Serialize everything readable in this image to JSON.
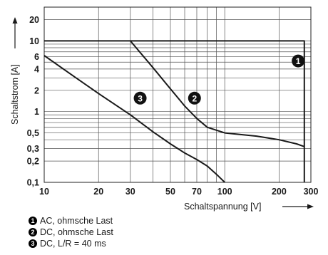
{
  "chart_data": {
    "type": "line",
    "xscale": "log",
    "yscale": "log",
    "xlim": [
      10,
      300
    ],
    "ylim": [
      0.1,
      30
    ],
    "xlabel": "Schaltspannung [V]",
    "ylabel": "Schaltstrom [A]",
    "xticks": [
      10,
      20,
      30,
      50,
      70,
      100,
      200,
      300
    ],
    "xtick_labels": [
      "10",
      "20",
      "30",
      "50",
      "70",
      "100",
      "200",
      "300"
    ],
    "yticks": [
      0.1,
      0.2,
      0.3,
      0.5,
      1,
      2,
      4,
      6,
      10,
      20
    ],
    "ytick_labels": [
      "0,1",
      "0,2",
      "0,3",
      "0,5",
      "1",
      "2",
      "4",
      "6",
      "10",
      "20"
    ],
    "grid": true,
    "series": [
      {
        "name": "AC, ohmsche Last",
        "marker": "1",
        "x": [
          10,
          276,
          276
        ],
        "y": [
          10,
          10,
          0.1
        ]
      },
      {
        "name": "DC, ohmsche Last",
        "marker": "2",
        "x": [
          30,
          40,
          50,
          60,
          70,
          80,
          100,
          150,
          200,
          250,
          276
        ],
        "y": [
          10,
          4.2,
          2.1,
          1.2,
          0.8,
          0.6,
          0.5,
          0.45,
          0.4,
          0.35,
          0.32
        ]
      },
      {
        "name": "DC, L/R = 40 ms",
        "marker": "3",
        "x": [
          10,
          15,
          20,
          30,
          40,
          50,
          60,
          70,
          80,
          90,
          100
        ],
        "y": [
          6.2,
          3,
          1.8,
          0.9,
          0.52,
          0.35,
          0.26,
          0.21,
          0.17,
          0.13,
          0.1
        ]
      }
    ]
  },
  "legend": [
    {
      "marker": "1",
      "label": "AC, ohmsche Last"
    },
    {
      "marker": "2",
      "label": "DC, ohmsche Last"
    },
    {
      "marker": "3",
      "label": "DC, L/R = 40 ms"
    }
  ]
}
